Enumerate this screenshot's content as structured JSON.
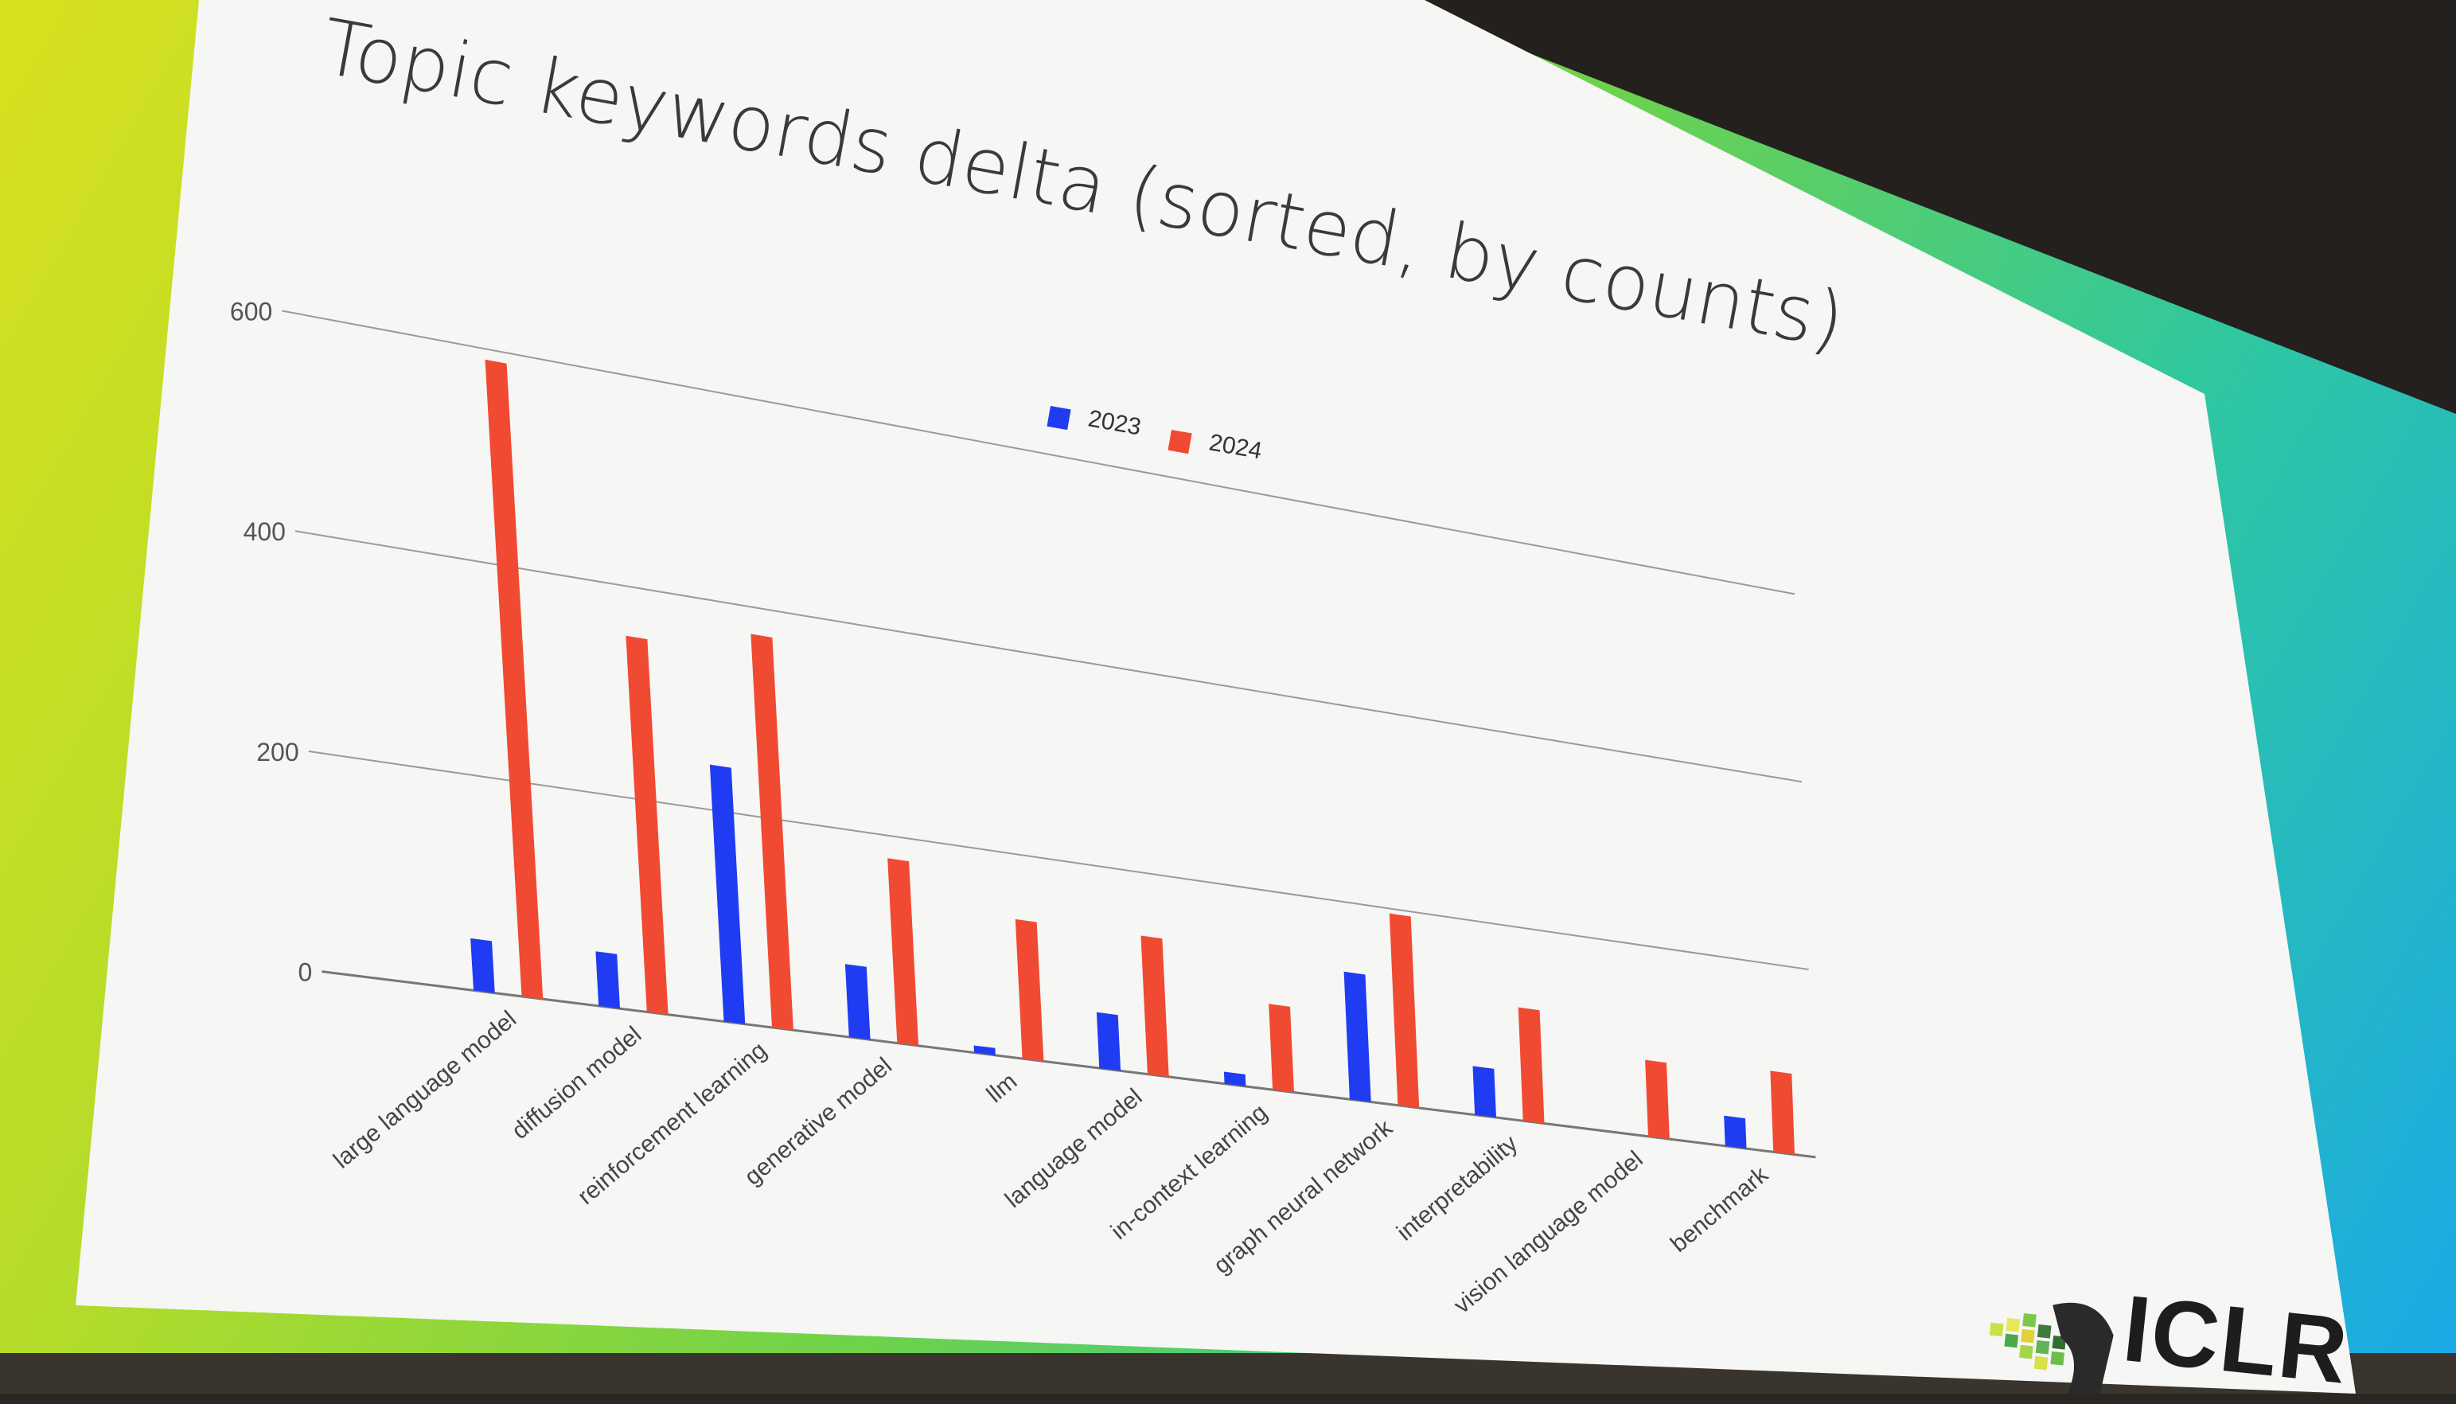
{
  "slide": {
    "title": "Topic keywords delta (sorted, by counts)",
    "logo_text": "ICLR"
  },
  "chart_data": {
    "type": "bar",
    "title": "Topic keywords delta (sorted, by counts)",
    "xlabel": "",
    "ylabel": "",
    "ylim": [
      0,
      600
    ],
    "yticks": [
      "0",
      "200",
      "400",
      "600"
    ],
    "grid": true,
    "legend_placement": "top-center",
    "categories": [
      "large language model",
      "diffusion model",
      "reinforcement learning",
      "generative model",
      "llm",
      "language model",
      "in-context learning",
      "graph neural network",
      "interpretability",
      "vision language model",
      "benchmark"
    ],
    "series": [
      {
        "name": "2023",
        "color": "#1f3cf2",
        "values": [
          48,
          51,
          243,
          70,
          7,
          55,
          12,
          129,
          50,
          0,
          32
        ]
      },
      {
        "name": "2024",
        "color": "#f04a32",
        "values": [
          590,
          353,
          374,
          178,
          136,
          137,
          86,
          195,
          117,
          80,
          86
        ]
      }
    ]
  }
}
